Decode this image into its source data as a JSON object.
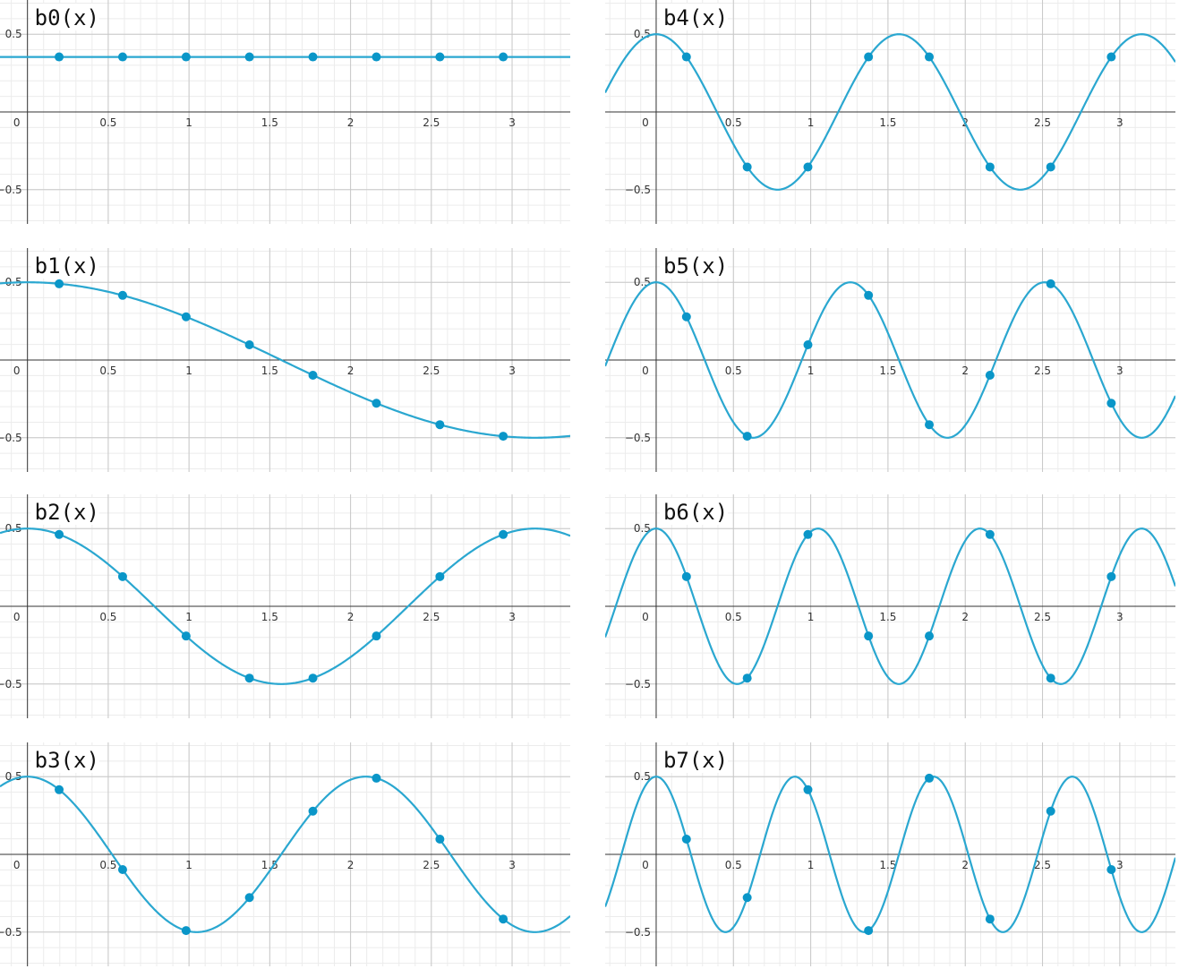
{
  "chart_data": [
    {
      "type": "line",
      "title": "b0(x)",
      "k": 0,
      "amplitude": 0.5,
      "x_ticks": [
        "0",
        "0.5",
        "1",
        "1.5",
        "2",
        "2.5",
        "3"
      ],
      "y_ticks": [
        "0.5",
        "−0.5"
      ],
      "xlim": [
        -0.17,
        3.36
      ],
      "ylim": [
        -0.72,
        0.72
      ],
      "grid": true,
      "points": [
        {
          "x": 0.196,
          "y": 0.354
        },
        {
          "x": 0.589,
          "y": 0.354
        },
        {
          "x": 0.982,
          "y": 0.354
        },
        {
          "x": 1.374,
          "y": 0.354
        },
        {
          "x": 1.767,
          "y": 0.354
        },
        {
          "x": 2.16,
          "y": 0.354
        },
        {
          "x": 2.553,
          "y": 0.354
        },
        {
          "x": 2.945,
          "y": 0.354
        }
      ]
    },
    {
      "type": "line",
      "title": "b1(x)",
      "k": 1,
      "amplitude": 0.5,
      "x_ticks": [
        "0",
        "0.5",
        "1",
        "1.5",
        "2",
        "2.5",
        "3"
      ],
      "y_ticks": [
        "0.5",
        "−0.5"
      ],
      "xlim": [
        -0.17,
        3.36
      ],
      "ylim": [
        -0.72,
        0.72
      ],
      "grid": true,
      "points": [
        {
          "x": 0.196,
          "y": 0.49
        },
        {
          "x": 0.589,
          "y": 0.416
        },
        {
          "x": 0.982,
          "y": 0.278
        },
        {
          "x": 1.374,
          "y": 0.098
        },
        {
          "x": 1.767,
          "y": -0.098
        },
        {
          "x": 2.16,
          "y": -0.278
        },
        {
          "x": 2.553,
          "y": -0.416
        },
        {
          "x": 2.945,
          "y": -0.49
        }
      ]
    },
    {
      "type": "line",
      "title": "b2(x)",
      "k": 2,
      "amplitude": 0.5,
      "x_ticks": [
        "0",
        "0.5",
        "1",
        "1.5",
        "2",
        "2.5",
        "3"
      ],
      "y_ticks": [
        "0.5",
        "−0.5"
      ],
      "xlim": [
        -0.17,
        3.36
      ],
      "ylim": [
        -0.72,
        0.72
      ],
      "grid": true,
      "points": [
        {
          "x": 0.196,
          "y": 0.462
        },
        {
          "x": 0.589,
          "y": 0.191
        },
        {
          "x": 0.982,
          "y": -0.191
        },
        {
          "x": 1.374,
          "y": -0.462
        },
        {
          "x": 1.767,
          "y": -0.462
        },
        {
          "x": 2.16,
          "y": -0.191
        },
        {
          "x": 2.553,
          "y": 0.191
        },
        {
          "x": 2.945,
          "y": 0.462
        }
      ]
    },
    {
      "type": "line",
      "title": "b3(x)",
      "k": 3,
      "amplitude": 0.5,
      "x_ticks": [
        "0",
        "0.5",
        "1",
        "1.5",
        "2",
        "2.5",
        "3"
      ],
      "y_ticks": [
        "0.5",
        "−0.5"
      ],
      "xlim": [
        -0.17,
        3.36
      ],
      "ylim": [
        -0.72,
        0.72
      ],
      "grid": true,
      "points": [
        {
          "x": 0.196,
          "y": 0.416
        },
        {
          "x": 0.589,
          "y": -0.098
        },
        {
          "x": 0.982,
          "y": -0.49
        },
        {
          "x": 1.374,
          "y": -0.278
        },
        {
          "x": 1.767,
          "y": 0.278
        },
        {
          "x": 2.16,
          "y": 0.49
        },
        {
          "x": 2.553,
          "y": 0.098
        },
        {
          "x": 2.945,
          "y": -0.416
        }
      ]
    },
    {
      "type": "line",
      "title": "b4(x)",
      "k": 4,
      "amplitude": 0.5,
      "x_ticks": [
        "0",
        "0.5",
        "1",
        "1.5",
        "2",
        "2.5",
        "3"
      ],
      "y_ticks": [
        "0.5",
        "−0.5"
      ],
      "xlim": [
        -0.33,
        3.36
      ],
      "ylim": [
        -0.72,
        0.72
      ],
      "grid": true,
      "points": [
        {
          "x": 0.196,
          "y": 0.354
        },
        {
          "x": 0.589,
          "y": -0.354
        },
        {
          "x": 0.982,
          "y": -0.354
        },
        {
          "x": 1.374,
          "y": 0.354
        },
        {
          "x": 1.767,
          "y": 0.354
        },
        {
          "x": 2.16,
          "y": -0.354
        },
        {
          "x": 2.553,
          "y": -0.354
        },
        {
          "x": 2.945,
          "y": 0.354
        }
      ]
    },
    {
      "type": "line",
      "title": "b5(x)",
      "k": 5,
      "amplitude": 0.5,
      "x_ticks": [
        "0",
        "0.5",
        "1",
        "1.5",
        "2",
        "2.5",
        "3"
      ],
      "y_ticks": [
        "0.5",
        "−0.5"
      ],
      "xlim": [
        -0.33,
        3.36
      ],
      "ylim": [
        -0.72,
        0.72
      ],
      "grid": true,
      "points": [
        {
          "x": 0.196,
          "y": 0.278
        },
        {
          "x": 0.589,
          "y": -0.49
        },
        {
          "x": 0.982,
          "y": 0.098
        },
        {
          "x": 1.374,
          "y": 0.416
        },
        {
          "x": 1.767,
          "y": -0.416
        },
        {
          "x": 2.16,
          "y": -0.098
        },
        {
          "x": 2.553,
          "y": 0.49
        },
        {
          "x": 2.945,
          "y": -0.278
        }
      ]
    },
    {
      "type": "line",
      "title": "b6(x)",
      "k": 6,
      "amplitude": 0.5,
      "x_ticks": [
        "0",
        "0.5",
        "1",
        "1.5",
        "2",
        "2.5",
        "3"
      ],
      "y_ticks": [
        "0.5",
        "−0.5"
      ],
      "xlim": [
        -0.33,
        3.36
      ],
      "ylim": [
        -0.72,
        0.72
      ],
      "grid": true,
      "points": [
        {
          "x": 0.196,
          "y": 0.191
        },
        {
          "x": 0.589,
          "y": -0.462
        },
        {
          "x": 0.982,
          "y": 0.462
        },
        {
          "x": 1.374,
          "y": -0.191
        },
        {
          "x": 1.767,
          "y": -0.191
        },
        {
          "x": 2.16,
          "y": 0.462
        },
        {
          "x": 2.553,
          "y": -0.462
        },
        {
          "x": 2.945,
          "y": 0.191
        }
      ]
    },
    {
      "type": "line",
      "title": "b7(x)",
      "k": 7,
      "amplitude": 0.5,
      "x_ticks": [
        "0",
        "0.5",
        "1",
        "1.5",
        "2",
        "2.5",
        "3"
      ],
      "y_ticks": [
        "0.5",
        "−0.5"
      ],
      "xlim": [
        -0.33,
        3.36
      ],
      "ylim": [
        -0.72,
        0.72
      ],
      "grid": true,
      "points": [
        {
          "x": 0.196,
          "y": 0.098
        },
        {
          "x": 0.589,
          "y": -0.278
        },
        {
          "x": 0.982,
          "y": 0.416
        },
        {
          "x": 1.374,
          "y": -0.49
        },
        {
          "x": 1.767,
          "y": 0.49
        },
        {
          "x": 2.16,
          "y": -0.416
        },
        {
          "x": 2.553,
          "y": 0.278
        },
        {
          "x": 2.945,
          "y": -0.098
        }
      ]
    }
  ],
  "colors": {
    "curve": "#2aa7d0",
    "point": "#0a96c8",
    "grid_major": "#c8c8c8",
    "grid_minor": "#ececec",
    "axis": "#333333"
  }
}
